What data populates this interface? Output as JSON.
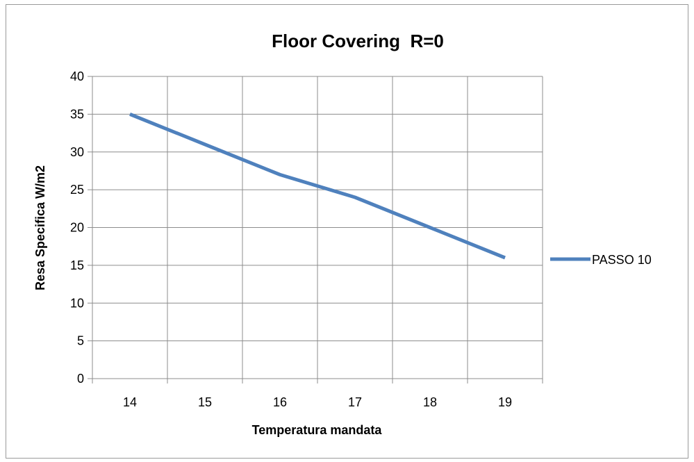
{
  "chart_data": {
    "type": "line",
    "title": "Floor Covering  R=0",
    "xlabel": "Temperatura mandata",
    "ylabel": "Resa Specifica W/m2",
    "categories": [
      "14",
      "15",
      "16",
      "17",
      "18",
      "19"
    ],
    "series": [
      {
        "name": "PASSO 10",
        "values": [
          35,
          31,
          27,
          24,
          20,
          16
        ],
        "color": "#4f81bd"
      }
    ],
    "ylim": [
      0,
      40
    ],
    "yticks": [
      "0",
      "5",
      "10",
      "15",
      "20",
      "25",
      "30",
      "35",
      "40"
    ],
    "grid": true,
    "legend": "right"
  }
}
